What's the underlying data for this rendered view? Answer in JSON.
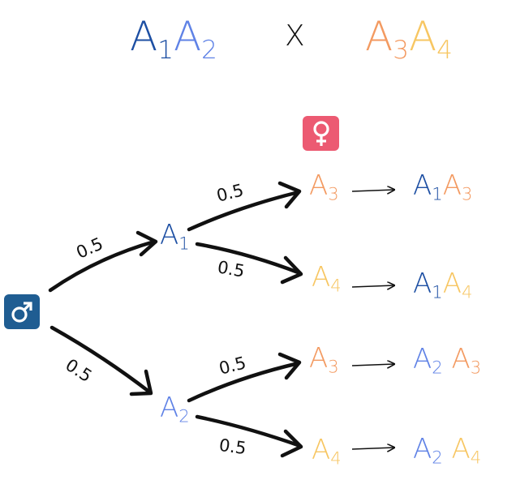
{
  "colors": {
    "A1": "#1d4fa3",
    "A2": "#5f82e6",
    "A3": "#f39a61",
    "A4": "#f7c662",
    "female_badge": "#ec5a72",
    "male_badge": "#1f5d92",
    "ink": "#111111"
  },
  "cross": {
    "left": {
      "a": "A",
      "a_sub": "1",
      "b": "A",
      "b_sub": "2"
    },
    "operator": "X",
    "right": {
      "a": "A",
      "a_sub": "3",
      "b": "A",
      "b_sub": "4"
    }
  },
  "symbols": {
    "female": "♀",
    "male": "♂"
  },
  "tree": {
    "male_branches": [
      {
        "label": "A",
        "sub": "1",
        "prob": "0.5"
      },
      {
        "label": "A",
        "sub": "2",
        "prob": "0.5"
      }
    ],
    "female_branches": [
      {
        "label": "A",
        "sub": "3",
        "prob": "0.5"
      },
      {
        "label": "A",
        "sub": "4",
        "prob": "0.5"
      },
      {
        "label": "A",
        "sub": "3",
        "prob": "0.5"
      },
      {
        "label": "A",
        "sub": "4",
        "prob": "0.5"
      }
    ],
    "outcomes": [
      {
        "a": "A",
        "a_sub": "1",
        "b": "A",
        "b_sub": "3"
      },
      {
        "a": "A",
        "a_sub": "1",
        "b": "A",
        "b_sub": "4"
      },
      {
        "a": "A",
        "a_sub": "2",
        "b": "A",
        "b_sub": "3"
      },
      {
        "a": "A",
        "a_sub": "2",
        "b": "A",
        "b_sub": "4"
      }
    ]
  }
}
